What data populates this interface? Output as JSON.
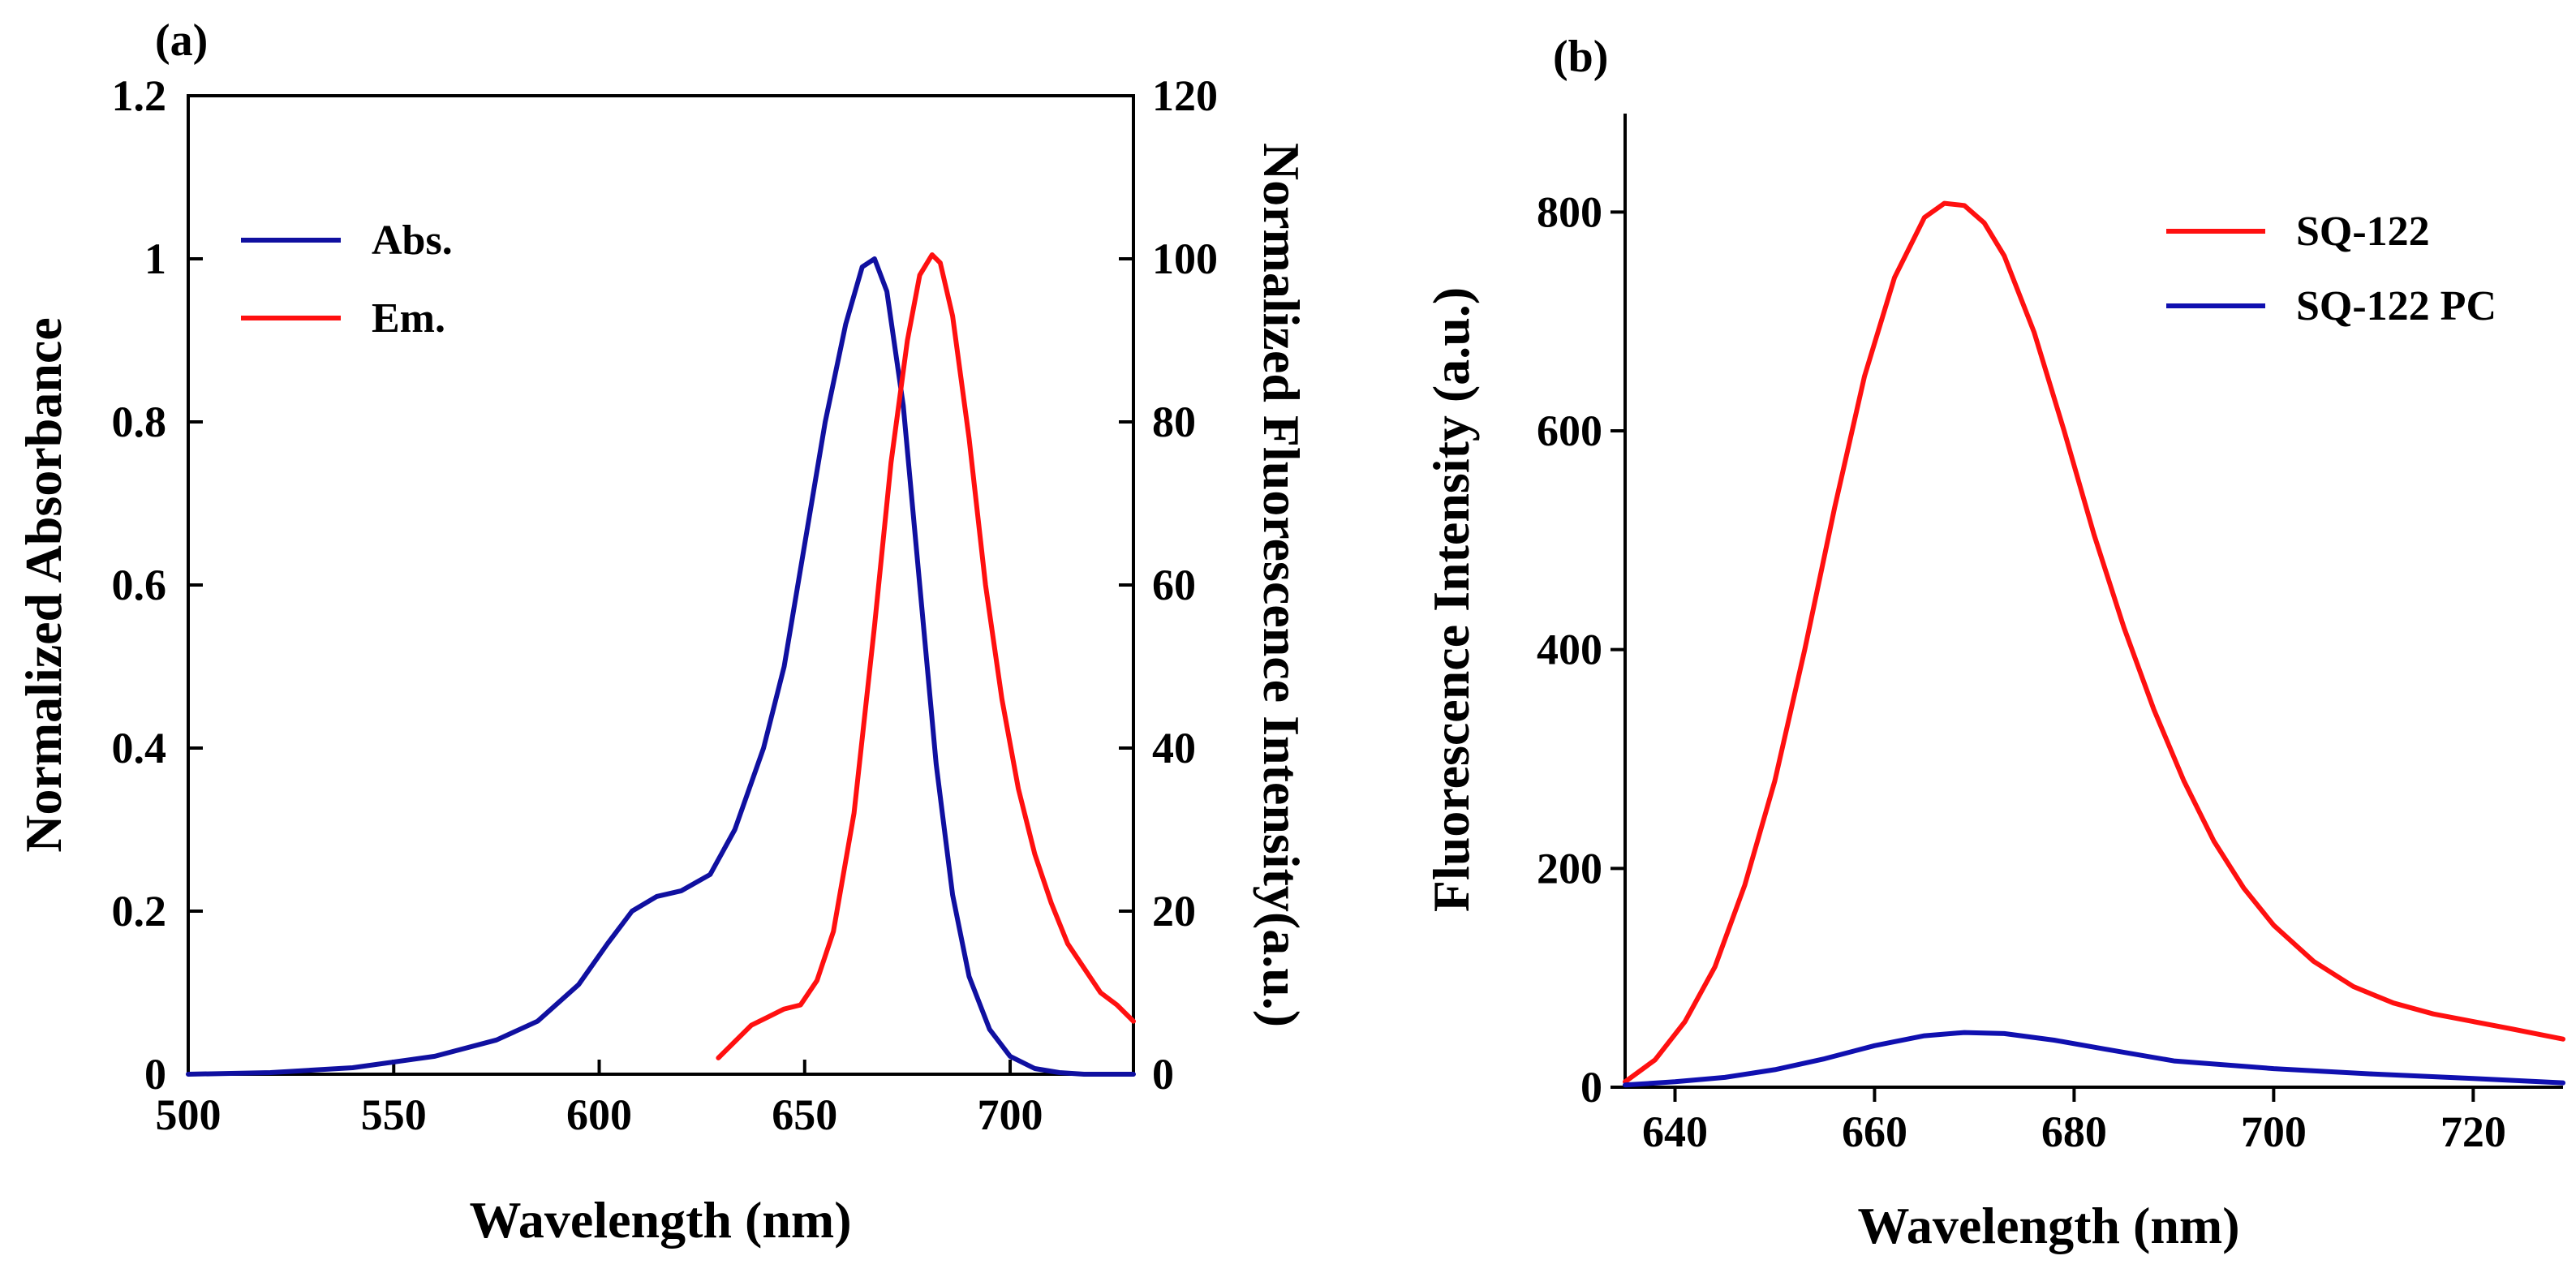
{
  "chart_data": [
    {
      "panel_label": "(a)",
      "type": "line",
      "xlabel": "Wavelength (nm)",
      "ylabel": "Normalized Absorbance",
      "y2label": "Normalized Fluorescence Intensity(a.u.)",
      "xlim": [
        500,
        730
      ],
      "ylim": [
        0,
        1.2
      ],
      "y2lim": [
        0,
        120
      ],
      "xticks": [
        500,
        550,
        600,
        650,
        700
      ],
      "yticks": [
        0,
        0.2,
        0.4,
        0.6,
        0.8,
        1,
        1.2
      ],
      "y2ticks": [
        0,
        20,
        40,
        60,
        80,
        100,
        120
      ],
      "legend_position": "top-left",
      "series": [
        {
          "name": "Abs.",
          "color": "#1010a0",
          "axis": "left",
          "x": [
            500,
            520,
            540,
            560,
            575,
            585,
            595,
            602,
            608,
            614,
            620,
            627,
            633,
            640,
            645,
            650,
            655,
            660,
            664,
            667,
            670,
            674,
            678,
            682,
            686,
            690,
            695,
            700,
            706,
            712,
            718,
            725,
            730
          ],
          "y": [
            0.0,
            0.002,
            0.008,
            0.022,
            0.042,
            0.065,
            0.11,
            0.16,
            0.2,
            0.218,
            0.225,
            0.245,
            0.3,
            0.4,
            0.5,
            0.65,
            0.8,
            0.92,
            0.99,
            1.0,
            0.96,
            0.82,
            0.6,
            0.38,
            0.22,
            0.12,
            0.055,
            0.022,
            0.007,
            0.002,
            0.0,
            0.0,
            0.0
          ]
        },
        {
          "name": "Em.",
          "color": "#ff1010",
          "axis": "right",
          "x": [
            629,
            633,
            637,
            641,
            645,
            649,
            653,
            657,
            662,
            667,
            671,
            675,
            678,
            681,
            683,
            686,
            690,
            694,
            698,
            702,
            706,
            710,
            714,
            718,
            722,
            726,
            730
          ],
          "y": [
            2.0,
            4.0,
            6.0,
            7.0,
            8.0,
            8.5,
            11.5,
            17.5,
            32.0,
            55.0,
            75.0,
            90.0,
            98.0,
            100.5,
            99.5,
            93.0,
            78.0,
            60.0,
            46.0,
            35.0,
            27.0,
            21.0,
            16.0,
            13.0,
            10.0,
            8.5,
            6.5
          ]
        }
      ]
    },
    {
      "panel_label": "(b)",
      "type": "line",
      "xlabel": "Wavelength (nm)",
      "ylabel": "Fluorescence Intensity (a.u.)",
      "xlim": [
        635,
        729
      ],
      "ylim": [
        0,
        890
      ],
      "xticks": [
        640,
        660,
        680,
        700,
        720
      ],
      "yticks": [
        0,
        200,
        400,
        600,
        800
      ],
      "legend_position": "top-right",
      "series": [
        {
          "name": "SQ-122",
          "color": "#ff1010",
          "x": [
            635,
            638,
            641,
            644,
            647,
            650,
            653,
            656,
            659,
            662,
            665,
            667,
            669,
            671,
            673,
            676,
            679,
            682,
            685,
            688,
            691,
            694,
            697,
            700,
            704,
            708,
            712,
            716,
            720,
            724,
            729
          ],
          "y": [
            5,
            25,
            60,
            110,
            185,
            280,
            400,
            530,
            650,
            740,
            795,
            808,
            806,
            790,
            760,
            690,
            600,
            505,
            420,
            345,
            280,
            225,
            182,
            148,
            115,
            92,
            77,
            67,
            60,
            53,
            44
          ]
        },
        {
          "name": "SQ-122 PC",
          "color": "#1010b0",
          "x": [
            635,
            640,
            645,
            650,
            655,
            660,
            665,
            669,
            673,
            678,
            683,
            690,
            700,
            710,
            720,
            729
          ],
          "y": [
            2,
            5,
            9,
            16,
            26,
            38,
            47,
            50,
            49,
            43,
            35,
            24,
            17,
            12,
            8,
            4
          ]
        }
      ]
    }
  ]
}
